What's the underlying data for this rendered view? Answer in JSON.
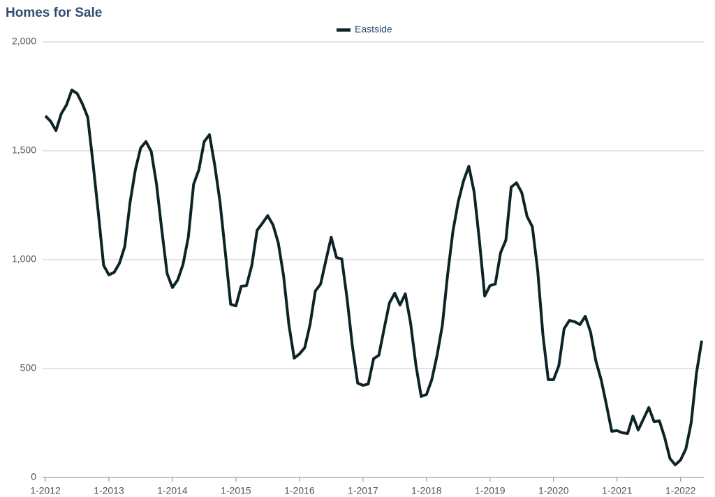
{
  "chart_data": {
    "type": "line",
    "title": "Homes for Sale",
    "categories": [
      "1-2012",
      null,
      null,
      null,
      null,
      null,
      null,
      null,
      null,
      null,
      null,
      null,
      "1-2013",
      null,
      null,
      null,
      null,
      null,
      null,
      null,
      null,
      null,
      null,
      null,
      "1-2014",
      null,
      null,
      null,
      null,
      null,
      null,
      null,
      null,
      null,
      null,
      null,
      "1-2015",
      null,
      null,
      null,
      null,
      null,
      null,
      null,
      null,
      null,
      null,
      null,
      "1-2016",
      null,
      null,
      null,
      null,
      null,
      null,
      null,
      null,
      null,
      null,
      null,
      "1-2017",
      null,
      null,
      null,
      null,
      null,
      null,
      null,
      null,
      null,
      null,
      null,
      "1-2018",
      null,
      null,
      null,
      null,
      null,
      null,
      null,
      null,
      null,
      null,
      null,
      "1-2019",
      null,
      null,
      null,
      null,
      null,
      null,
      null,
      null,
      null,
      null,
      null,
      "1-2020",
      null,
      null,
      null,
      null,
      null,
      null,
      null,
      null,
      null,
      null,
      null,
      "1-2021",
      null,
      null,
      null,
      null,
      null,
      null,
      null,
      null,
      null,
      null,
      null,
      "1-2022",
      null,
      null,
      null,
      null
    ],
    "series": [
      {
        "name": "Eastside",
        "color": "#0d2426",
        "values": [
          1660,
          1635,
          1593,
          1670,
          1711,
          1779,
          1763,
          1715,
          1654,
          1442,
          1215,
          974,
          930,
          942,
          984,
          1061,
          1263,
          1413,
          1513,
          1542,
          1497,
          1346,
          1135,
          936,
          872,
          907,
          978,
          1103,
          1346,
          1413,
          1542,
          1574,
          1433,
          1263,
          1032,
          795,
          788,
          878,
          881,
          974,
          1135,
          1167,
          1202,
          1160,
          1077,
          926,
          702,
          548,
          567,
          596,
          702,
          856,
          888,
          997,
          1103,
          1010,
          1003,
          821,
          603,
          433,
          423,
          429,
          545,
          561,
          683,
          801,
          846,
          792,
          843,
          708,
          516,
          372,
          381,
          449,
          561,
          699,
          933,
          1131,
          1266,
          1362,
          1429,
          1311,
          1087,
          833,
          881,
          888,
          1032,
          1090,
          1333,
          1353,
          1308,
          1199,
          1151,
          952,
          654,
          449,
          449,
          513,
          683,
          721,
          715,
          702,
          740,
          667,
          535,
          449,
          333,
          212,
          215,
          205,
          202,
          282,
          218,
          269,
          321,
          256,
          260,
          183,
          87,
          58,
          80,
          131,
          250,
          478,
          628
        ]
      }
    ],
    "ylim": [
      0,
      2000
    ],
    "yticks": [
      0,
      500,
      {
        "value": 1000,
        "label": "1,000"
      },
      {
        "value": 1500,
        "label": "1,500"
      },
      {
        "value": 2000,
        "label": "2,000"
      }
    ],
    "grid": true,
    "legend": "top"
  }
}
